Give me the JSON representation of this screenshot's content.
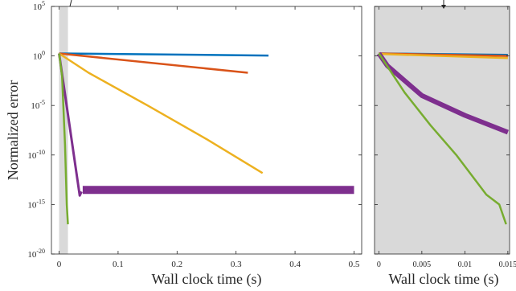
{
  "chart_data": [
    {
      "type": "line",
      "ylabel": "Normalized error",
      "xlabel": "Wall clock time (s)",
      "yscale": "log",
      "xlim": [
        -0.013,
        0.513
      ],
      "ylim": [
        1e-20,
        100000.0
      ],
      "x_ticks": [
        0,
        0.1,
        0.2,
        0.3,
        0.4,
        0.5
      ],
      "x_tick_labels": [
        "0",
        "0.1",
        "0.2",
        "0.3",
        "0.4",
        "0.5"
      ],
      "y_ticks": [
        1e-20,
        1e-15,
        1e-10,
        1e-05,
        1,
        100000.0
      ],
      "y_tick_labels": [
        {
          "base": "10",
          "exp": "-20"
        },
        {
          "base": "10",
          "exp": "-15"
        },
        {
          "base": "10",
          "exp": "-10"
        },
        {
          "base": "10",
          "exp": "-5"
        },
        {
          "base": "10",
          "exp": "0"
        },
        {
          "base": "10",
          "exp": "5"
        }
      ],
      "shaded_region": {
        "x": [
          0,
          0.015
        ],
        "color": "#d9d9d9"
      },
      "grid": false,
      "series": [
        {
          "color": "#0072bd",
          "width": 2.5,
          "x": [
            0,
            0.355
          ],
          "y": [
            1.8,
            1.1
          ]
        },
        {
          "color": "#d95319",
          "width": 2.5,
          "x": [
            0,
            0.32
          ],
          "y": [
            1.8,
            0.02
          ]
        },
        {
          "color": "#edb120",
          "width": 2.5,
          "x": [
            0,
            0.05,
            0.15,
            0.25,
            0.345
          ],
          "y": [
            1.8,
            0.02,
            1e-05,
            4e-09,
            1.5e-12
          ]
        },
        {
          "color": "#7e2f8e",
          "width": 3,
          "x": [
            0,
            0.035,
            0.038
          ],
          "y": [
            1.8,
            8e-15,
            2e-14
          ]
        },
        {
          "color": "#7e2f8e",
          "width": 10,
          "x": [
            0.04,
            0.5
          ],
          "y": [
            3e-14,
            3e-14
          ]
        },
        {
          "color": "#77ac30",
          "width": 2.5,
          "x": [
            0,
            0.005,
            0.01,
            0.013,
            0.015
          ],
          "y": [
            1.8,
            0.01,
            1e-09,
            1e-15,
            1e-17
          ]
        }
      ]
    },
    {
      "type": "line",
      "xlabel": "Wall clock time (s)",
      "yscale": "log",
      "xlim": [
        -0.0005,
        0.0152
      ],
      "ylim": [
        1e-20,
        100000.0
      ],
      "x_ticks": [
        0,
        0.005,
        0.01,
        0.015
      ],
      "x_tick_labels": [
        "0",
        "0.005",
        "0.01",
        "0.015"
      ],
      "y_ticks": [
        1e-20,
        1e-15,
        1e-10,
        1e-05,
        1,
        100000.0
      ],
      "background": "#d9d9d9",
      "grid": false,
      "series": [
        {
          "color": "#0072bd",
          "width": 2.5,
          "x": [
            0,
            0.015
          ],
          "y": [
            1.8,
            1.3
          ]
        },
        {
          "color": "#d95319",
          "width": 2.5,
          "x": [
            0,
            0.015
          ],
          "y": [
            1.8,
            1.0
          ]
        },
        {
          "color": "#edb120",
          "width": 2.5,
          "x": [
            0,
            0.015
          ],
          "y": [
            1.6,
            0.6
          ]
        },
        {
          "color": "#7e2f8e",
          "width": 6,
          "x": [
            0,
            0.001,
            0.005,
            0.01,
            0.015
          ],
          "y": [
            1.8,
            0.1,
            0.0001,
            1e-06,
            2e-08
          ]
        },
        {
          "color": "#77ac30",
          "width": 2.5,
          "x": [
            0,
            0.003,
            0.006,
            0.009,
            0.0125,
            0.014,
            0.0148
          ],
          "y": [
            1.8,
            0.0002,
            1e-07,
            1e-10,
            1e-14,
            1e-15,
            1e-17
          ]
        }
      ]
    }
  ]
}
